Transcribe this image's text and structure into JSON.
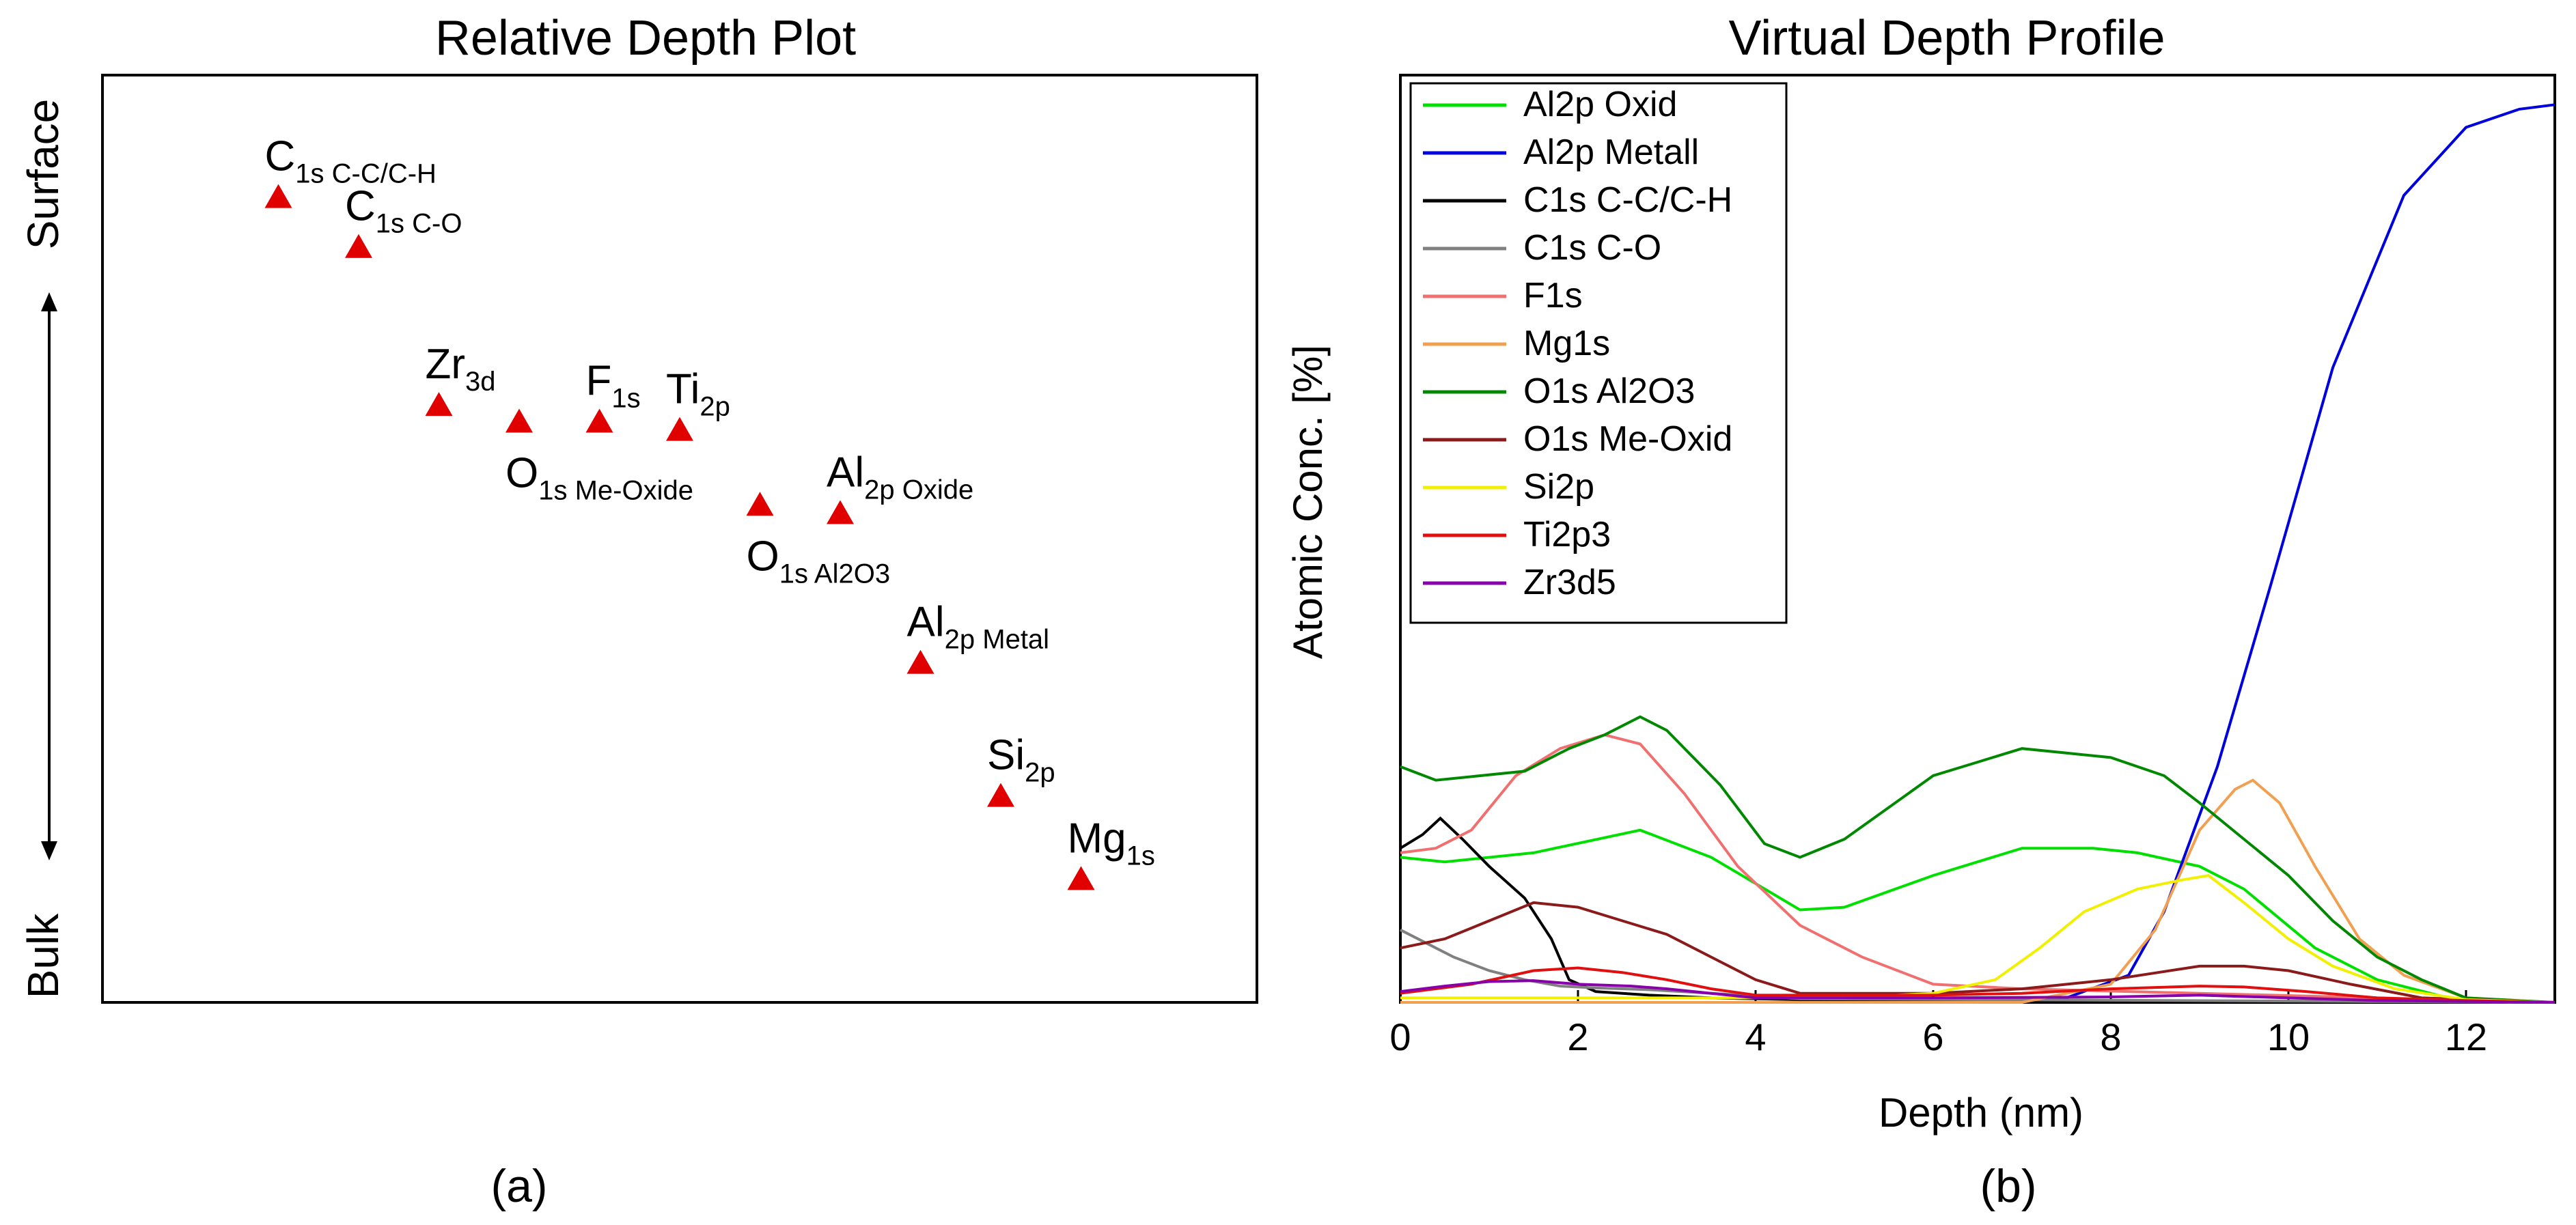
{
  "chart_data": [
    {
      "type": "scatter",
      "title": "Relative Depth Plot",
      "marker": "triangle",
      "marker_color": "#e00000",
      "y_axis_top_label": "Surface",
      "y_axis_bottom_label": "Bulk",
      "x_range": [
        0,
        12
      ],
      "y_range": [
        0,
        100
      ],
      "points": [
        {
          "base": "C",
          "sub": "1s C-C/C-H",
          "sup": "",
          "x": 1,
          "y": 91,
          "label_pos": "above"
        },
        {
          "base": "C",
          "sub": "1s C-O",
          "sup": "",
          "x": 2,
          "y": 85,
          "label_pos": "above"
        },
        {
          "base": "Zr",
          "sub": "3d",
          "sup": "",
          "x": 3,
          "y": 66,
          "label_pos": "above"
        },
        {
          "base": "O",
          "sub": "1s Me-Oxide",
          "sup": "",
          "x": 4,
          "y": 64,
          "label_pos": "below"
        },
        {
          "base": "F",
          "sub": "1s",
          "sup": "",
          "x": 5,
          "y": 64,
          "label_pos": "above"
        },
        {
          "base": "Ti",
          "sub": "2p",
          "sup": "",
          "x": 6,
          "y": 63,
          "label_pos": "above"
        },
        {
          "base": "O",
          "sub": "1s Al2O3",
          "sup": "",
          "x": 7,
          "y": 54,
          "label_pos": "below"
        },
        {
          "base": "Al",
          "sub": "2p Oxide",
          "sup": "",
          "x": 8,
          "y": 53,
          "label_pos": "above"
        },
        {
          "base": "Al",
          "sub": "2p Metal",
          "sup": "",
          "x": 9,
          "y": 35,
          "label_pos": "above"
        },
        {
          "base": "Si",
          "sub": "2p",
          "sup": "",
          "x": 10,
          "y": 19,
          "label_pos": "above"
        },
        {
          "base": "Mg",
          "sub": "1s",
          "sup": "",
          "x": 11,
          "y": 9,
          "label_pos": "above"
        }
      ],
      "panel_label": "(a)"
    },
    {
      "type": "line",
      "title": "Virtual Depth Profile",
      "xlabel": "Depth (nm)",
      "ylabel": "Atomic Conc. [%]",
      "xlim": [
        0,
        13
      ],
      "ylim": [
        0,
        100
      ],
      "x_ticks": [
        0,
        2,
        4,
        6,
        8,
        10,
        12
      ],
      "legend_position": "top-left",
      "panel_label": "(b)",
      "series": [
        {
          "name": "Al2p Oxid",
          "color": "#00e000",
          "points": [
            [
              0,
              16
            ],
            [
              0.5,
              15.5
            ],
            [
              1.5,
              16.5
            ],
            [
              2.7,
              19
            ],
            [
              3.5,
              16
            ],
            [
              4.5,
              10.2
            ],
            [
              5,
              10.5
            ],
            [
              6,
              14
            ],
            [
              7,
              17
            ],
            [
              7.8,
              17
            ],
            [
              8.3,
              16.5
            ],
            [
              9,
              15
            ],
            [
              9.5,
              12.5
            ],
            [
              10.3,
              6
            ],
            [
              11,
              2.5
            ],
            [
              11.8,
              0.5
            ],
            [
              12.5,
              0
            ]
          ]
        },
        {
          "name": "Al2p Metall",
          "color": "#0000dd",
          "points": [
            [
              0,
              0
            ],
            [
              5.5,
              0
            ],
            [
              6.5,
              0.2
            ],
            [
              7.5,
              0.5
            ],
            [
              8.2,
              3
            ],
            [
              8.6,
              10
            ],
            [
              9.2,
              26
            ],
            [
              9.8,
              46
            ],
            [
              10.5,
              70
            ],
            [
              11.3,
              89
            ],
            [
              12,
              96.5
            ],
            [
              12.6,
              98.5
            ],
            [
              13,
              99
            ]
          ]
        },
        {
          "name": "C1s C-C/C-H",
          "color": "#000000",
          "points": [
            [
              0,
              17
            ],
            [
              0.25,
              18.5
            ],
            [
              0.45,
              20.3
            ],
            [
              0.7,
              18
            ],
            [
              1,
              15
            ],
            [
              1.4,
              11.5
            ],
            [
              1.7,
              7
            ],
            [
              1.9,
              2.5
            ],
            [
              2.2,
              1.2
            ],
            [
              2.8,
              0.8
            ],
            [
              3.5,
              0.5
            ],
            [
              4.5,
              0.3
            ],
            [
              13,
              0
            ]
          ]
        },
        {
          "name": "C1s C-O",
          "color": "#808080",
          "points": [
            [
              0,
              8
            ],
            [
              0.3,
              6.5
            ],
            [
              0.6,
              5
            ],
            [
              1,
              3.5
            ],
            [
              1.4,
              2.5
            ],
            [
              1.8,
              1.8
            ],
            [
              2.2,
              1.6
            ],
            [
              2.8,
              1.4
            ],
            [
              3.5,
              1
            ],
            [
              4.5,
              0.4
            ],
            [
              13,
              0
            ]
          ]
        },
        {
          "name": "F1s",
          "color": "#f07070",
          "points": [
            [
              0,
              16.5
            ],
            [
              0.4,
              17
            ],
            [
              0.8,
              19
            ],
            [
              1.3,
              25
            ],
            [
              1.8,
              28
            ],
            [
              2.3,
              29.5
            ],
            [
              2.7,
              28.5
            ],
            [
              3.2,
              23
            ],
            [
              3.8,
              15
            ],
            [
              4.5,
              8.5
            ],
            [
              5.2,
              5
            ],
            [
              6,
              2
            ],
            [
              7,
              1.5
            ],
            [
              9,
              1
            ],
            [
              13,
              0
            ]
          ]
        },
        {
          "name": "Mg1s",
          "color": "#f0a050",
          "points": [
            [
              0,
              0
            ],
            [
              7,
              0
            ],
            [
              8,
              2
            ],
            [
              8.5,
              8
            ],
            [
              9,
              19
            ],
            [
              9.4,
              23.5
            ],
            [
              9.6,
              24.5
            ],
            [
              9.9,
              22
            ],
            [
              10.3,
              15
            ],
            [
              10.8,
              7
            ],
            [
              11.3,
              3
            ],
            [
              12,
              0.5
            ],
            [
              13,
              0
            ]
          ]
        },
        {
          "name": "O1s Al2O3",
          "color": "#008800",
          "points": [
            [
              0,
              26
            ],
            [
              0.4,
              24.5
            ],
            [
              0.9,
              25
            ],
            [
              1.4,
              25.5
            ],
            [
              1.9,
              28
            ],
            [
              2.3,
              29.5
            ],
            [
              2.7,
              31.5
            ],
            [
              3,
              30
            ],
            [
              3.6,
              24
            ],
            [
              4.1,
              17.5
            ],
            [
              4.5,
              16
            ],
            [
              5,
              18
            ],
            [
              5.5,
              21.5
            ],
            [
              6,
              25
            ],
            [
              6.5,
              26.5
            ],
            [
              7,
              28
            ],
            [
              7.5,
              27.5
            ],
            [
              8,
              27
            ],
            [
              8.6,
              25
            ],
            [
              9,
              22
            ],
            [
              9.5,
              18
            ],
            [
              10,
              14
            ],
            [
              10.5,
              9
            ],
            [
              11,
              5
            ],
            [
              11.5,
              2.5
            ],
            [
              12,
              0.5
            ],
            [
              13,
              0
            ]
          ]
        },
        {
          "name": "O1s Me-Oxid",
          "color": "#8b1a1a",
          "points": [
            [
              0,
              6
            ],
            [
              0.5,
              7
            ],
            [
              1,
              9
            ],
            [
              1.5,
              11
            ],
            [
              2,
              10.5
            ],
            [
              2.5,
              9
            ],
            [
              3,
              7.5
            ],
            [
              3.5,
              5
            ],
            [
              4,
              2.5
            ],
            [
              4.5,
              1
            ],
            [
              6,
              1
            ],
            [
              7,
              1.5
            ],
            [
              8,
              2.5
            ],
            [
              9,
              4
            ],
            [
              9.5,
              4
            ],
            [
              10,
              3.5
            ],
            [
              10.7,
              2
            ],
            [
              11.5,
              0.5
            ],
            [
              13,
              0
            ]
          ]
        },
        {
          "name": "Si2p",
          "color": "#f0f000",
          "points": [
            [
              0,
              0.5
            ],
            [
              5,
              0.5
            ],
            [
              6,
              1
            ],
            [
              6.7,
              2.5
            ],
            [
              7.2,
              6
            ],
            [
              7.7,
              10
            ],
            [
              8.3,
              12.5
            ],
            [
              8.8,
              13.5
            ],
            [
              9.1,
              14
            ],
            [
              9.5,
              11
            ],
            [
              10,
              7
            ],
            [
              10.5,
              4
            ],
            [
              11.2,
              1.5
            ],
            [
              12,
              0.3
            ],
            [
              13,
              0
            ]
          ]
        },
        {
          "name": "Ti2p3",
          "color": "#e01010",
          "points": [
            [
              0,
              1
            ],
            [
              0.8,
              2
            ],
            [
              1.5,
              3.5
            ],
            [
              2,
              3.8
            ],
            [
              2.5,
              3.3
            ],
            [
              3,
              2.5
            ],
            [
              3.5,
              1.5
            ],
            [
              4,
              0.8
            ],
            [
              6,
              0.8
            ],
            [
              7,
              1
            ],
            [
              8,
              1.5
            ],
            [
              9,
              1.8
            ],
            [
              9.5,
              1.7
            ],
            [
              10.2,
              1.2
            ],
            [
              11,
              0.5
            ],
            [
              12,
              0.2
            ],
            [
              13,
              0
            ]
          ]
        },
        {
          "name": "Zr3d5",
          "color": "#8800aa",
          "points": [
            [
              0,
              1.2
            ],
            [
              0.5,
              1.8
            ],
            [
              1,
              2.3
            ],
            [
              1.5,
              2.4
            ],
            [
              2,
              2
            ],
            [
              2.6,
              1.8
            ],
            [
              3,
              1.5
            ],
            [
              3.5,
              1
            ],
            [
              4,
              0.5
            ],
            [
              6,
              0.5
            ],
            [
              8,
              0.6
            ],
            [
              9,
              0.8
            ],
            [
              10,
              0.5
            ],
            [
              11,
              0.2
            ],
            [
              13,
              0
            ]
          ]
        }
      ]
    }
  ]
}
